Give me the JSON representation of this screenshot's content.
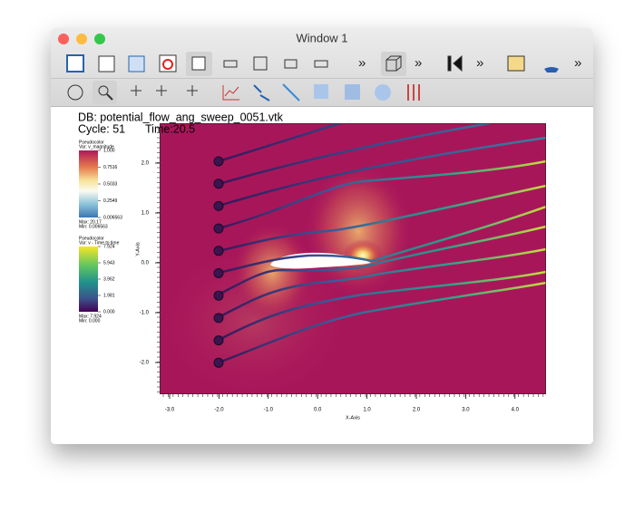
{
  "window": {
    "title": "Window 1"
  },
  "plot": {
    "database": "DB: potential_flow_ang_sweep_0051.vtk",
    "cycle": "Cycle: 51",
    "time": "Time:20.5",
    "legends": [
      {
        "plot": "Pseudocolor",
        "var": "Var: v_magnitude",
        "ticks": [
          "1.000",
          "0.7516",
          "0.5033",
          "0.2549",
          "0.006563"
        ],
        "max": "Max: 20.17",
        "min": "Min: 0.006563"
      },
      {
        "plot": "Pseudocolor",
        "var": "Var: v - Time to time",
        "ticks": [
          "7.924",
          "5.943",
          "3.962",
          "1.981",
          "0.000"
        ],
        "max": "Max: 7.924",
        "min": "Min: 0.000"
      }
    ],
    "x_axis": {
      "title": "X-Axis",
      "ticks": [
        "-3.0",
        "-2.0",
        "-1.0",
        "0.0",
        "1.0",
        "2.0",
        "3.0",
        "4.0"
      ]
    },
    "y_axis": {
      "title": "Y-Axis",
      "ticks": [
        "-2.0",
        "-1.0",
        "0.0",
        "1.0",
        "2.0"
      ]
    }
  }
}
